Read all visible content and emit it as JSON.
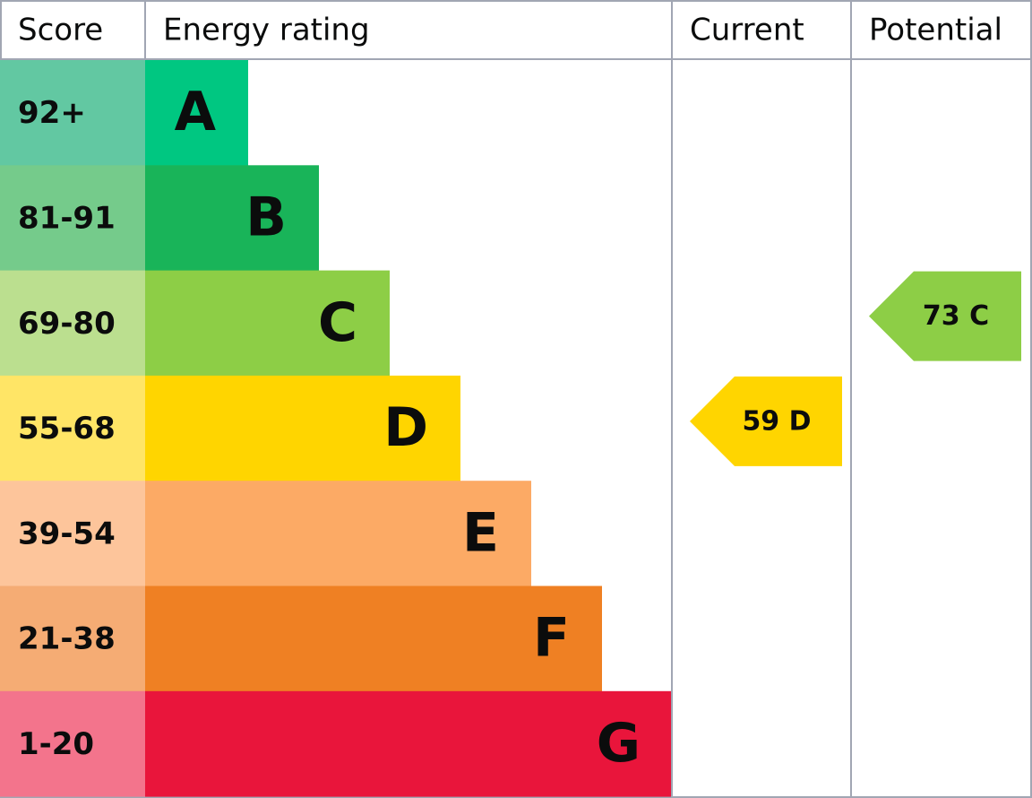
{
  "header": {
    "score": "Score",
    "rating": "Energy rating",
    "current": "Current",
    "potential": "Potential"
  },
  "bands": [
    {
      "score": "92+",
      "letter": "A",
      "color": "#00c781",
      "score_color": "#62c8a2"
    },
    {
      "score": "81-91",
      "letter": "B",
      "color": "#19b459",
      "score_color": "#75cb8b"
    },
    {
      "score": "69-80",
      "letter": "C",
      "color": "#8dce46",
      "score_color": "#bbdf8f"
    },
    {
      "score": "55-68",
      "letter": "D",
      "color": "#ffd500",
      "score_color": "#ffe566"
    },
    {
      "score": "39-54",
      "letter": "E",
      "color": "#fcaa65",
      "score_color": "#fdc59b"
    },
    {
      "score": "21-38",
      "letter": "F",
      "color": "#ef8023",
      "score_color": "#f5ac74"
    },
    {
      "score": "1-20",
      "letter": "G",
      "color": "#e9153b",
      "score_color": "#f3748c"
    }
  ],
  "current": {
    "label": "59 D"
  },
  "potential": {
    "label": "73 C"
  }
}
